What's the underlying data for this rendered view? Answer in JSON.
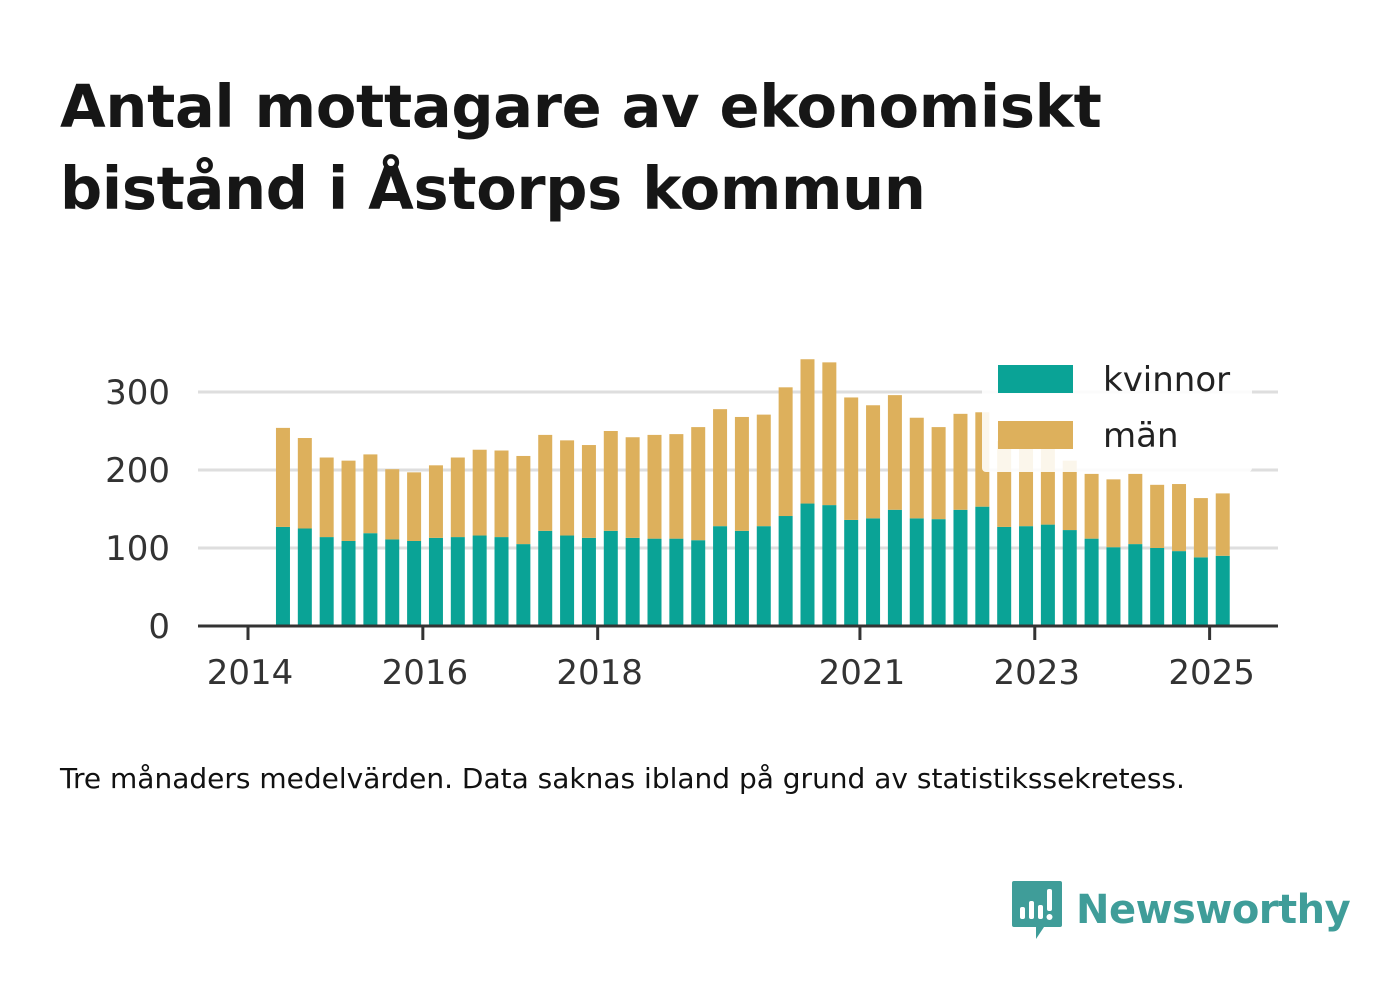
{
  "title": "Antal mottagare av ekonomiskt bistånd i Åstorps kommun",
  "note": "Tre månaders medelvärden. Data saknas ibland på grund av statistikssekretess.",
  "brand": {
    "name": "Newsworthy",
    "icon": "newsworthy-logo-icon"
  },
  "colors": {
    "kvinnor": "#0aa396",
    "man": "#ddb05c",
    "grid": "#dedede",
    "axis": "#333333",
    "brand": "#3f9d99"
  },
  "chart_data": {
    "type": "bar",
    "stacked": true,
    "x": [
      "2014-05",
      "2014-08",
      "2014-11",
      "2015-02",
      "2015-05",
      "2015-08",
      "2015-11",
      "2016-02",
      "2016-05",
      "2016-08",
      "2016-11",
      "2017-02",
      "2017-05",
      "2017-08",
      "2017-11",
      "2018-02",
      "2018-05",
      "2018-08",
      "2018-11",
      "2019-02",
      "2019-05",
      "2019-08",
      "2019-11",
      "2020-02",
      "2020-05",
      "2020-08",
      "2020-11",
      "2021-02",
      "2021-05",
      "2021-08",
      "2021-11",
      "2022-02",
      "2022-05",
      "2022-08",
      "2022-11",
      "2023-02",
      "2023-05",
      "2023-08",
      "2023-11",
      "2024-02",
      "2024-05",
      "2024-08",
      "2024-11",
      "2025-02"
    ],
    "series": [
      {
        "name": "kvinnor",
        "values": [
          127,
          125,
          114,
          109,
          119,
          111,
          109,
          113,
          114,
          116,
          114,
          105,
          122,
          116,
          113,
          122,
          113,
          112,
          112,
          110,
          128,
          122,
          128,
          141,
          157,
          155,
          136,
          138,
          149,
          138,
          137,
          149,
          153,
          127,
          128,
          130,
          123,
          112,
          101,
          105,
          100,
          96,
          88,
          90
        ]
      },
      {
        "name": "män",
        "values": [
          127,
          116,
          102,
          103,
          101,
          90,
          88,
          93,
          102,
          110,
          111,
          113,
          123,
          122,
          119,
          128,
          129,
          133,
          134,
          145,
          150,
          146,
          143,
          165,
          185,
          183,
          157,
          145,
          147,
          129,
          118,
          123,
          121,
          110,
          104,
          100,
          89,
          83,
          87,
          90,
          81,
          86,
          76,
          80
        ]
      }
    ],
    "xticks": [
      "2014",
      "2016",
      "2018",
      "2021",
      "2023",
      "2025"
    ],
    "yticks": [
      0,
      100,
      200,
      300
    ],
    "ylim": [
      0,
      345
    ],
    "grid": true,
    "legend": {
      "position": "top-right",
      "entries": [
        "kvinnor",
        "män"
      ]
    }
  }
}
